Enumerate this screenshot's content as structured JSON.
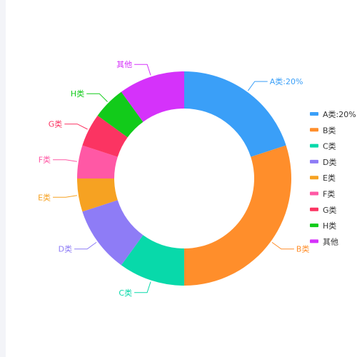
{
  "chart_data": {
    "type": "pie",
    "donut": true,
    "title": "",
    "slices": [
      {
        "label": "A类:20%",
        "short": "A类:20%",
        "value": 20,
        "color": "#3a9ff8"
      },
      {
        "label": "B类",
        "short": "B类",
        "value": 30,
        "color": "#ff8e2b"
      },
      {
        "label": "C类",
        "short": "C类",
        "value": 10,
        "color": "#08d9aa"
      },
      {
        "label": "D类",
        "short": "D类",
        "value": 10,
        "color": "#8e7cf6"
      },
      {
        "label": "E类",
        "short": "E类",
        "value": 5,
        "color": "#f6a222"
      },
      {
        "label": "F类",
        "short": "F类",
        "value": 5,
        "color": "#ff58a5"
      },
      {
        "label": "G类",
        "short": "G类",
        "value": 5,
        "color": "#fb3462"
      },
      {
        "label": "H类",
        "short": "H类",
        "value": 5,
        "color": "#12cb1a"
      },
      {
        "label": "其他",
        "short": "其他",
        "value": 10,
        "color": "#d532fa"
      }
    ],
    "legend_position": "right"
  }
}
